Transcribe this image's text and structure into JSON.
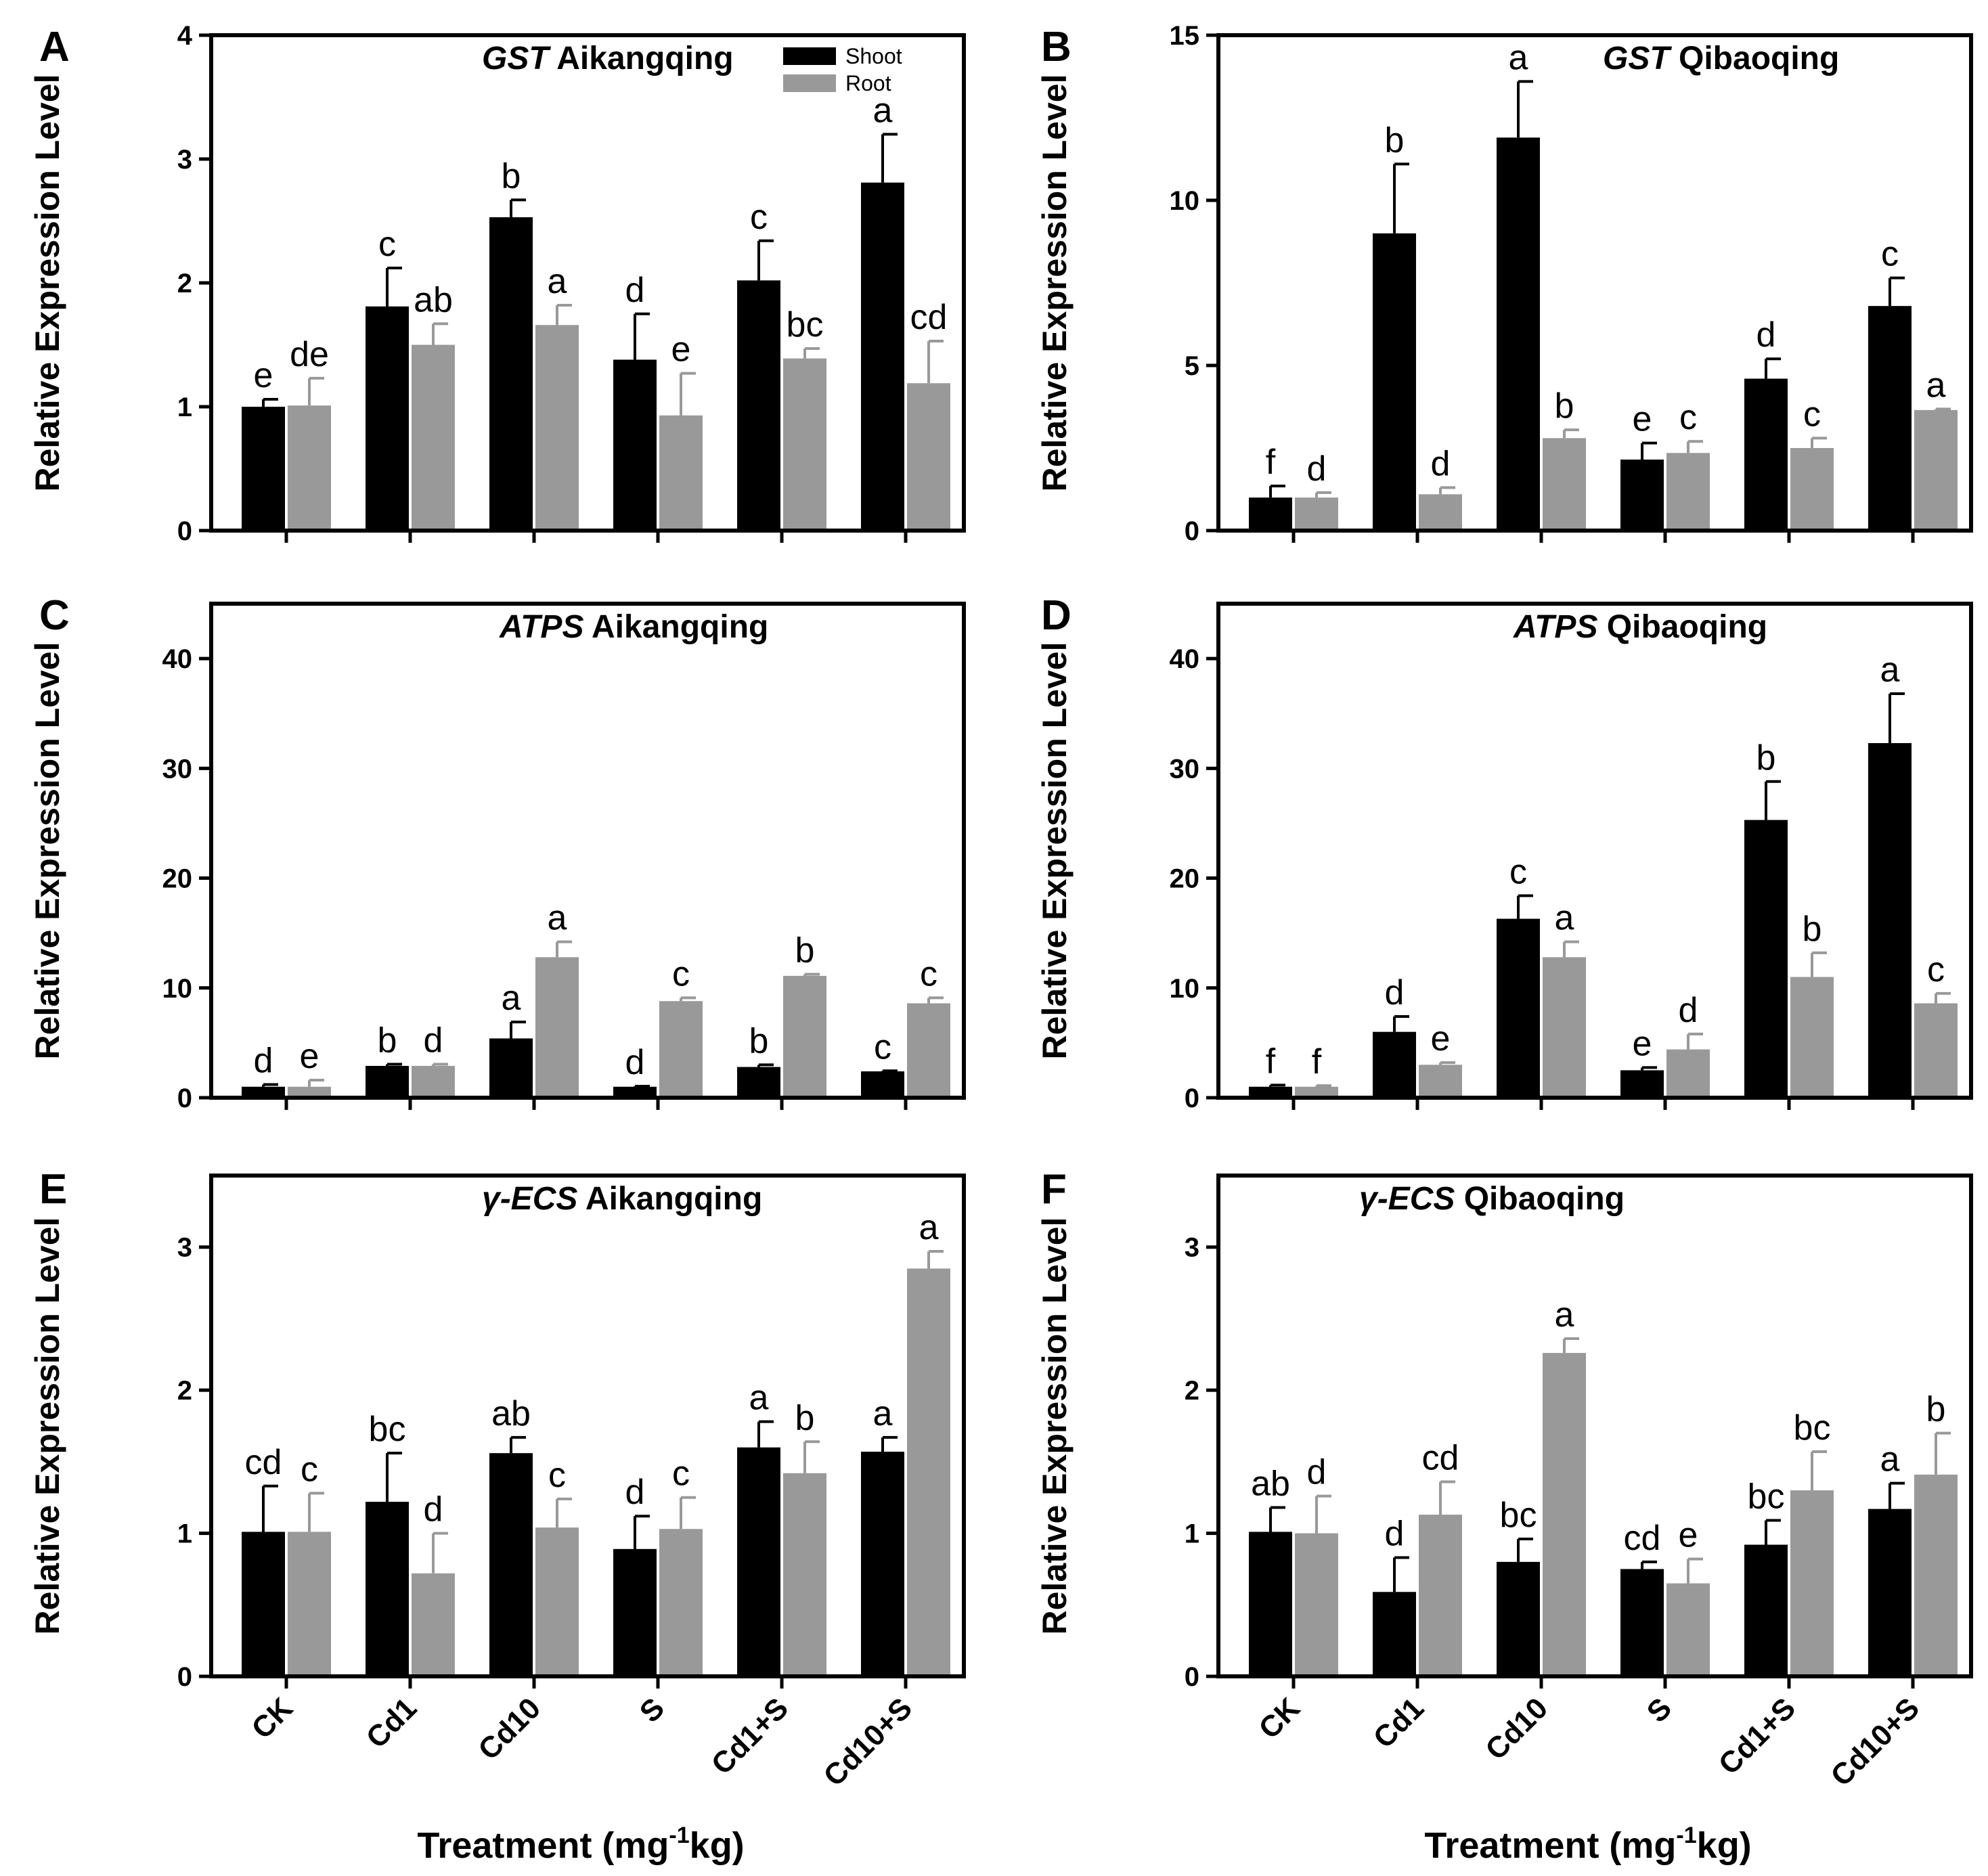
{
  "chart_data": [
    {
      "type": "bar",
      "panel": "A",
      "title_gene": "GST",
      "title_variety": "Aikangqing",
      "ylabel": "Relative Expression Level",
      "ylim": [
        0,
        4
      ],
      "yticks": [
        "0",
        "1",
        "2",
        "3",
        "4"
      ],
      "categories": [
        "CK",
        "Cd1",
        "Cd10",
        "S",
        "Cd1+S",
        "Cd10+S"
      ],
      "legend": {
        "position": "top-right",
        "entries": [
          "Shoot",
          "Root"
        ]
      },
      "series": [
        {
          "name": "Shoot",
          "color": "#000000",
          "values": [
            1.0,
            1.81,
            2.53,
            1.38,
            2.02,
            2.81
          ],
          "errors": [
            0.06,
            0.31,
            0.14,
            0.37,
            0.32,
            0.39
          ],
          "letters": [
            "e",
            "c",
            "b",
            "d",
            "c",
            "a"
          ]
        },
        {
          "name": "Root",
          "color": "#999999",
          "values": [
            1.01,
            1.5,
            1.66,
            0.93,
            1.39,
            1.19
          ],
          "errors": [
            0.22,
            0.17,
            0.16,
            0.34,
            0.08,
            0.34
          ],
          "letters": [
            "de",
            "ab",
            "a",
            "e",
            "bc",
            "cd"
          ]
        }
      ]
    },
    {
      "type": "bar",
      "panel": "B",
      "title_gene": "GST",
      "title_variety": "Qibaoqing",
      "ylabel": "Relative Expression Level",
      "ylim": [
        0,
        15
      ],
      "yticks": [
        "0",
        "5",
        "10",
        "15"
      ],
      "categories": [
        "CK",
        "Cd1",
        "Cd10",
        "S",
        "Cd1+S",
        "Cd10+S"
      ],
      "series": [
        {
          "name": "Shoot",
          "color": "#000000",
          "values": [
            1.0,
            9.0,
            11.9,
            2.15,
            4.6,
            6.8
          ],
          "errors": [
            0.35,
            2.1,
            1.7,
            0.5,
            0.6,
            0.85
          ],
          "letters": [
            "f",
            "b",
            "a",
            "e",
            "d",
            "c"
          ]
        },
        {
          "name": "Root",
          "color": "#999999",
          "values": [
            1.0,
            1.1,
            2.8,
            2.35,
            2.5,
            3.65
          ],
          "errors": [
            0.15,
            0.2,
            0.25,
            0.35,
            0.3,
            0.03
          ],
          "letters": [
            "d",
            "d",
            "b",
            "c",
            "c",
            "a"
          ]
        }
      ]
    },
    {
      "type": "bar",
      "panel": "C",
      "title_gene": "ATPS",
      "title_variety": "Aikangqing",
      "ylabel": "Relative Expression Level",
      "ylim": [
        0,
        45
      ],
      "yticks": [
        "0",
        "10",
        "20",
        "30",
        "40"
      ],
      "categories": [
        "CK",
        "Cd1",
        "Cd10",
        "S",
        "Cd1+S",
        "Cd10+S"
      ],
      "series": [
        {
          "name": "Shoot",
          "color": "#000000",
          "values": [
            1.0,
            2.9,
            5.4,
            1.0,
            2.8,
            2.4
          ],
          "errors": [
            0.2,
            0.15,
            1.5,
            0.05,
            0.2,
            0.05
          ],
          "letters": [
            "d",
            "b",
            "a",
            "d",
            "b",
            "c"
          ]
        },
        {
          "name": "Root",
          "color": "#999999",
          "values": [
            1.0,
            2.9,
            12.8,
            8.8,
            11.1,
            8.6
          ],
          "errors": [
            0.6,
            0.15,
            1.4,
            0.3,
            0.15,
            0.5
          ],
          "letters": [
            "e",
            "d",
            "a",
            "c",
            "b",
            "c"
          ]
        }
      ]
    },
    {
      "type": "bar",
      "panel": "D",
      "title_gene": "ATPS",
      "title_variety": "Qibaoqing",
      "ylabel": "Relative Expression Level",
      "ylim": [
        0,
        45
      ],
      "yticks": [
        "0",
        "10",
        "20",
        "30",
        "40"
      ],
      "categories": [
        "CK",
        "Cd1",
        "Cd10",
        "S",
        "Cd1+S",
        "Cd10+S"
      ],
      "series": [
        {
          "name": "Shoot",
          "color": "#000000",
          "values": [
            1.0,
            6.0,
            16.3,
            2.5,
            25.3,
            32.3
          ],
          "errors": [
            0.15,
            1.4,
            2.1,
            0.25,
            3.5,
            4.5
          ],
          "letters": [
            "f",
            "d",
            "c",
            "e",
            "b",
            "a"
          ]
        },
        {
          "name": "Root",
          "color": "#999999",
          "values": [
            1.0,
            3.0,
            12.8,
            4.4,
            11.0,
            8.6
          ],
          "errors": [
            0.1,
            0.2,
            1.4,
            1.4,
            2.2,
            0.9
          ],
          "letters": [
            "f",
            "e",
            "a",
            "d",
            "b",
            "c"
          ]
        }
      ]
    },
    {
      "type": "bar",
      "panel": "E",
      "title_gene": "γ-ECS",
      "title_variety": "Aikangqing",
      "ylabel": "Relative Expression Level",
      "ylim": [
        0,
        3.5
      ],
      "yticks": [
        "0",
        "1",
        "2",
        "3"
      ],
      "categories": [
        "CK",
        "Cd1",
        "Cd10",
        "S",
        "Cd1+S",
        "Cd10+S"
      ],
      "series": [
        {
          "name": "Shoot",
          "color": "#000000",
          "values": [
            1.01,
            1.22,
            1.56,
            0.89,
            1.6,
            1.57
          ],
          "errors": [
            0.32,
            0.34,
            0.11,
            0.23,
            0.18,
            0.1
          ],
          "letters": [
            "cd",
            "bc",
            "ab",
            "d",
            "a",
            "a"
          ]
        },
        {
          "name": "Root",
          "color": "#999999",
          "values": [
            1.01,
            0.72,
            1.04,
            1.03,
            1.42,
            2.85
          ],
          "errors": [
            0.27,
            0.28,
            0.2,
            0.22,
            0.22,
            0.12
          ],
          "letters": [
            "c",
            "d",
            "c",
            "c",
            "b",
            "a"
          ]
        }
      ]
    },
    {
      "type": "bar",
      "panel": "F",
      "title_gene": "γ-ECS",
      "title_variety": "Qibaoqing",
      "ylabel": "Relative Expression Level",
      "ylim": [
        0,
        3.5
      ],
      "yticks": [
        "0",
        "1",
        "2",
        "3"
      ],
      "categories": [
        "CK",
        "Cd1",
        "Cd10",
        "S",
        "Cd1+S",
        "Cd10+S"
      ],
      "series": [
        {
          "name": "Shoot",
          "color": "#000000",
          "values": [
            1.01,
            0.59,
            0.8,
            0.75,
            0.92,
            1.17
          ],
          "errors": [
            0.17,
            0.24,
            0.16,
            0.05,
            0.17,
            0.18
          ],
          "letters": [
            "ab",
            "d",
            "bc",
            "cd",
            "bc",
            "a"
          ]
        },
        {
          "name": "Root",
          "color": "#999999",
          "values": [
            1.0,
            1.13,
            2.26,
            0.65,
            1.3,
            1.41
          ],
          "errors": [
            0.26,
            0.23,
            0.1,
            0.17,
            0.27,
            0.29
          ],
          "letters": [
            "d",
            "cd",
            "a",
            "e",
            "bc",
            "b"
          ]
        }
      ]
    }
  ],
  "xaxis_title": {
    "main": "Treatment (mg",
    "sup": "-1",
    "tail": "kg)"
  }
}
